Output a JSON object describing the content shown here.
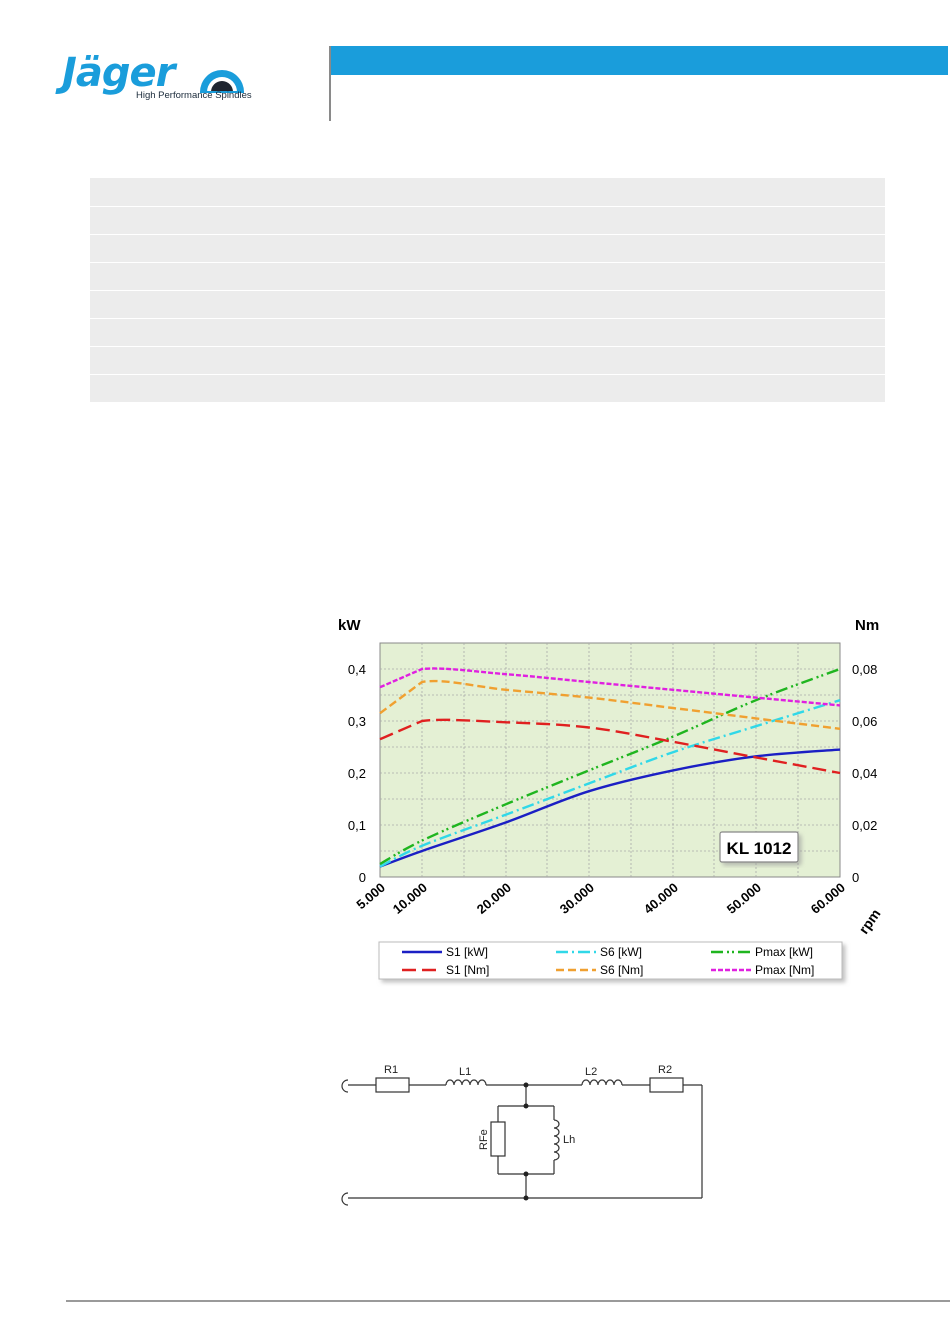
{
  "header": {
    "brand": "Jäger",
    "tagline": "High Performance Spindles"
  },
  "colors": {
    "brand_blue": "#1a9ddb",
    "row_shade": "#ececec",
    "plot_bg": "#e4f0d4"
  },
  "chart_data": {
    "type": "line",
    "title": "",
    "xlabel": "rpm",
    "ylabel_left": "kW",
    "ylabel_right": "Nm",
    "x_ticks": [
      "5.000",
      "10.000",
      "20.000",
      "30.000",
      "40.000",
      "50.000",
      "60.000"
    ],
    "x_tick_values": [
      5000,
      10000,
      20000,
      30000,
      40000,
      50000,
      60000
    ],
    "xlim": [
      5000,
      60000
    ],
    "ylim_left": [
      0,
      0.45
    ],
    "ylim_right": [
      0,
      0.09
    ],
    "y_ticks_left": [
      "0",
      "0,1",
      "0,2",
      "0,3",
      "0,4"
    ],
    "y_ticks_right": [
      "0",
      "0,02",
      "0,04",
      "0,06",
      "0,08"
    ],
    "annotation": "KL 1012",
    "grid": true,
    "legend_position": "bottom",
    "series": [
      {
        "name": "S1 [kW]",
        "axis": "left",
        "color": "#1b1fc4",
        "dash": "solid",
        "x": [
          5000,
          10000,
          20000,
          30000,
          40000,
          50000,
          60000
        ],
        "y": [
          0.02,
          0.05,
          0.105,
          0.165,
          0.205,
          0.232,
          0.245
        ]
      },
      {
        "name": "S6 [kW]",
        "axis": "left",
        "color": "#30d8e8",
        "dash": "dashdot",
        "x": [
          5000,
          10000,
          20000,
          30000,
          40000,
          50000,
          60000
        ],
        "y": [
          0.02,
          0.06,
          0.12,
          0.18,
          0.24,
          0.29,
          0.34
        ]
      },
      {
        "name": "Pmax [kW]",
        "axis": "left",
        "color": "#1fb51f",
        "dash": "dashdotdot",
        "x": [
          5000,
          10000,
          20000,
          30000,
          40000,
          50000,
          60000
        ],
        "y": [
          0.025,
          0.07,
          0.14,
          0.205,
          0.27,
          0.34,
          0.4
        ]
      },
      {
        "name": "S1 [Nm]",
        "axis": "right",
        "color": "#e02020",
        "dash": "longdash",
        "x": [
          5000,
          10000,
          20000,
          30000,
          40000,
          50000,
          60000
        ],
        "y": [
          0.053,
          0.06,
          0.0595,
          0.0575,
          0.052,
          0.046,
          0.04
        ]
      },
      {
        "name": "S6 [Nm]",
        "axis": "right",
        "color": "#f0a030",
        "dash": "dash",
        "x": [
          5000,
          10000,
          20000,
          30000,
          40000,
          50000,
          60000
        ],
        "y": [
          0.063,
          0.075,
          0.072,
          0.069,
          0.065,
          0.061,
          0.057
        ]
      },
      {
        "name": "Pmax [Nm]",
        "axis": "right",
        "color": "#e020e0",
        "dash": "shortdash",
        "x": [
          5000,
          10000,
          20000,
          30000,
          40000,
          50000,
          60000
        ],
        "y": [
          0.073,
          0.08,
          0.078,
          0.075,
          0.072,
          0.069,
          0.066
        ]
      }
    ]
  },
  "circuit": {
    "labels": {
      "r1": "R1",
      "l1": "L1",
      "l2": "L2",
      "r2": "R2",
      "rfe": "RFe",
      "lh": "Lh"
    }
  }
}
